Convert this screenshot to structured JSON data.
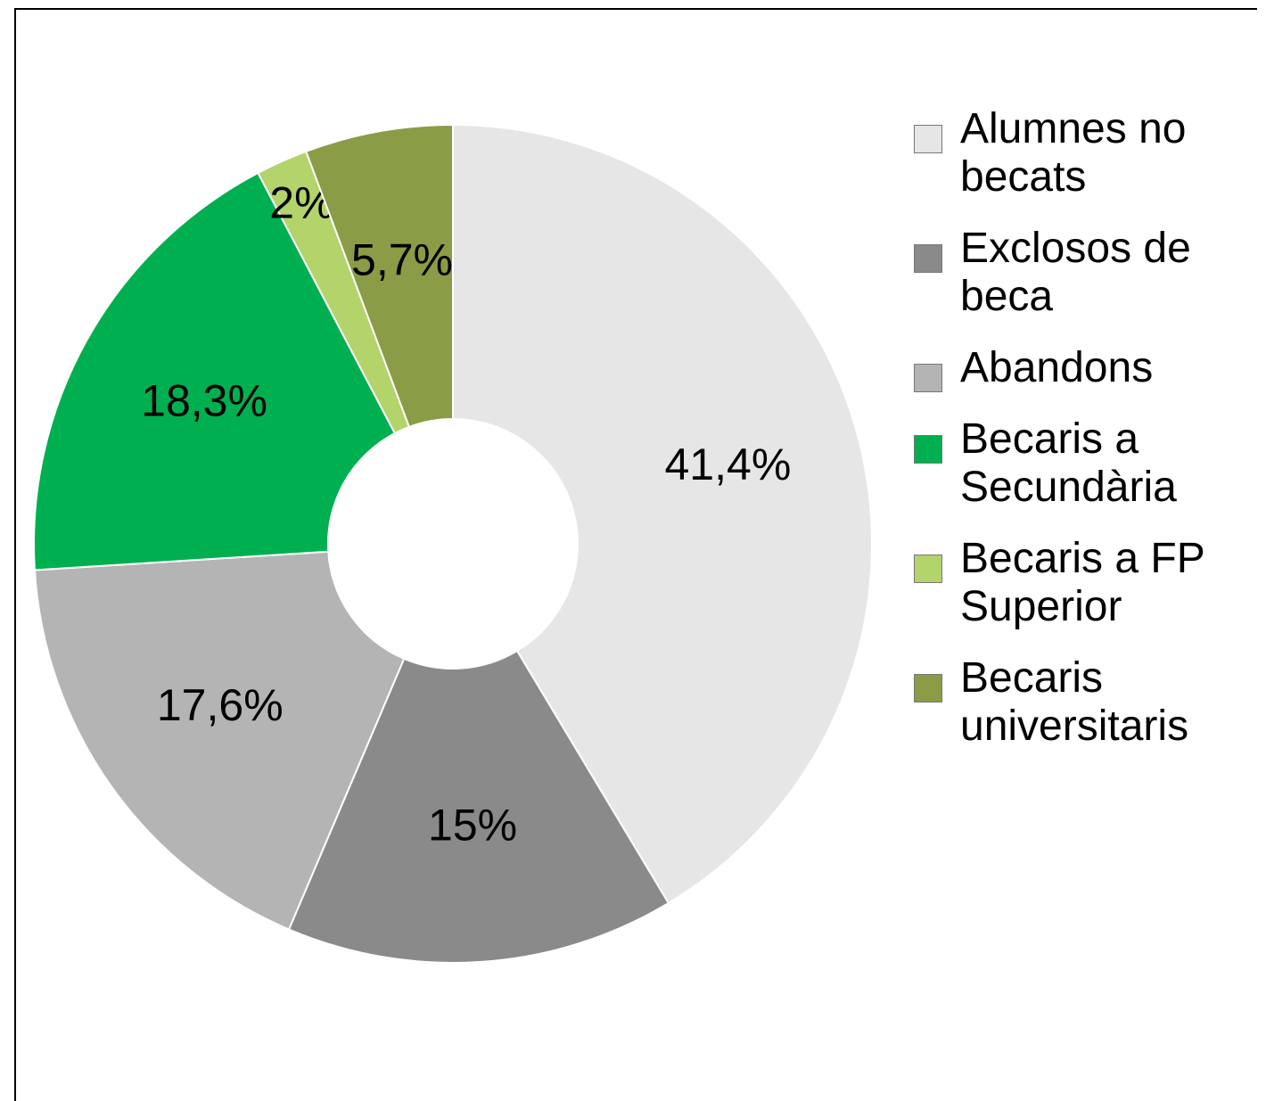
{
  "chart_data": {
    "type": "donut",
    "categories": [
      "Alumnes no becats",
      "Exclosos de beca",
      "Abandons",
      "Becaris a Secundària",
      "Becaris a FP Superior",
      "Becaris universitaris"
    ],
    "values": [
      41.4,
      15,
      17.6,
      18.3,
      2,
      5.7
    ],
    "value_labels": [
      "41,4%",
      "15%",
      "17,6%",
      "18,3%",
      "2%",
      "5,7%"
    ],
    "colors": [
      "#e6e6e6",
      "#8a8a8a",
      "#b4b4b4",
      "#00b050",
      "#b3d36b",
      "#8a9c45"
    ],
    "legend": "right"
  }
}
